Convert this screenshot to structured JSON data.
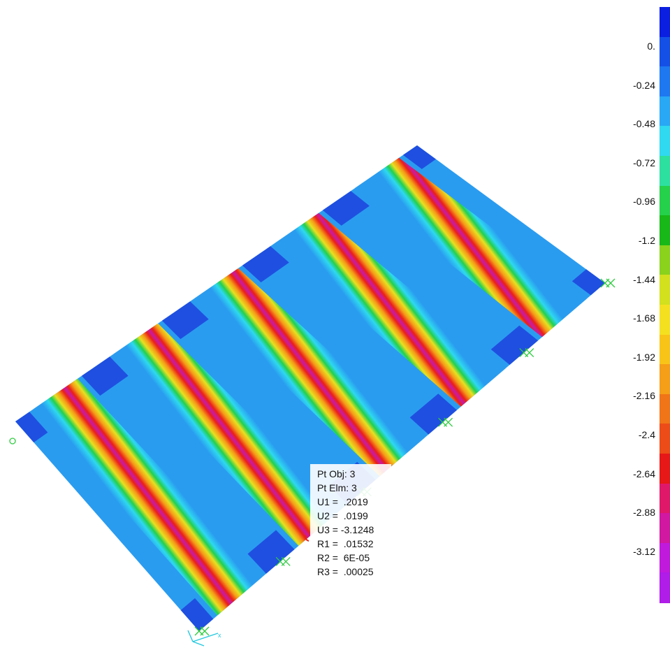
{
  "legend": {
    "labels": [
      "0.",
      "-0.24",
      "-0.48",
      "-0.72",
      "-0.96",
      "-1.2",
      "-1.44",
      "-1.68",
      "-1.92",
      "-2.16",
      "-2.4",
      "-2.64",
      "-2.88",
      "-3.12"
    ],
    "colors": [
      "#0a1fe0",
      "#1450e6",
      "#1e78f0",
      "#28a8f5",
      "#30d8f0",
      "#2ee0a0",
      "#25d04a",
      "#18b818",
      "#8ad21c",
      "#d2e01e",
      "#f5e020",
      "#f8c418",
      "#f59e18",
      "#f07418",
      "#ec4c18",
      "#e61818",
      "#e0186a",
      "#d018a0",
      "#c01adc",
      "#b01ce8"
    ]
  },
  "point_info": {
    "pt_obj_label": "Pt Obj: 3",
    "pt_elm_label": "Pt Elm: 3",
    "u1": "U1 =  .2019",
    "u2": "U2 =  .0199",
    "u3": "U3 = -3.1248",
    "r1": "R1 =  .01532",
    "r2": "R2 =  6E-05",
    "r3": "R3 =  .00025"
  },
  "axes": {
    "x_label": "x"
  },
  "contour": {
    "colors": {
      "support_dark": "#1f4fe0",
      "support_blue": "#2a9cf0",
      "cyan": "#2ed8f0",
      "green": "#22d050",
      "yellow": "#e8e020",
      "orange": "#f59a18",
      "red": "#ea2018",
      "magenta": "#c81aa8",
      "restraint": "#2ecc40"
    }
  }
}
